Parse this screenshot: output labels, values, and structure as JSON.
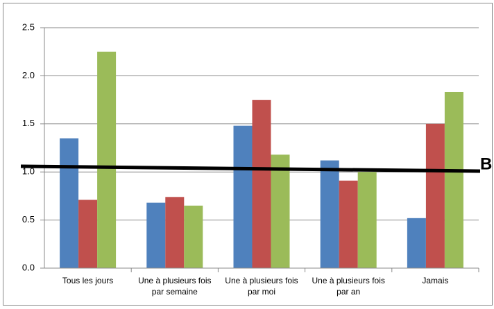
{
  "chart_data": {
    "type": "bar",
    "categories": [
      "Tous les jours",
      "Une à plusieurs fois par semaine",
      "Une à plusieurs fois par moi",
      "Une à plusieurs fois par an",
      "Jamais"
    ],
    "series": [
      {
        "color": "#4f81bd",
        "values": [
          1.35,
          0.68,
          1.48,
          1.12,
          0.52
        ]
      },
      {
        "color": "#c0504d",
        "values": [
          0.71,
          0.74,
          1.75,
          0.91,
          1.5
        ]
      },
      {
        "color": "#9bbb59",
        "values": [
          2.25,
          0.65,
          1.18,
          1.0,
          1.83
        ]
      }
    ],
    "ylim": [
      0,
      2.5
    ],
    "yticks": [
      {
        "value": 0,
        "label": "0.0"
      },
      {
        "value": 0.5,
        "label": "0.5"
      },
      {
        "value": 1,
        "label": "1.0"
      },
      {
        "value": 1.5,
        "label": "1.5"
      },
      {
        "value": 2,
        "label": "2.0"
      },
      {
        "value": 2.5,
        "label": "2.5"
      }
    ],
    "grid": true,
    "annotation": "B"
  }
}
